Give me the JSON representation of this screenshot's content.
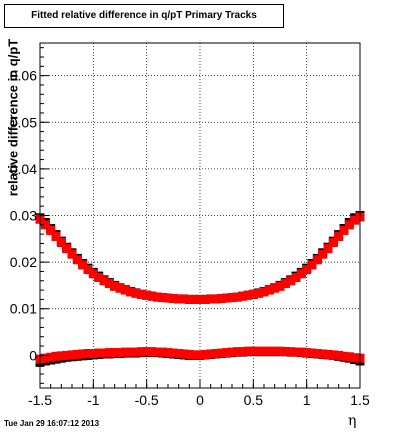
{
  "title": "Fitted relative difference in q/pT  Primary Tracks",
  "timestamp": "Tue Jan 29 16:07:12 2013",
  "colors": {
    "series_red": "#ff0000",
    "series_black": "#000000",
    "grid": "#000000",
    "frame": "#000000"
  },
  "chart_data": {
    "type": "scatter",
    "title": "Fitted relative difference in q/pT  Primary Tracks",
    "xlabel": "η",
    "ylabel": "relative difference in q/pT",
    "xlim": [
      -1.5,
      1.5
    ],
    "ylim": [
      -0.007,
      0.067
    ],
    "grid": true,
    "legend": "none",
    "x_ticks": [
      "-1.5",
      "-1",
      "-0.5",
      "0",
      "0.5",
      "1",
      "1.5"
    ],
    "y_ticks": [
      "0",
      "0.01",
      "0.02",
      "0.03",
      "0.04",
      "0.05",
      "0.06"
    ],
    "series": [
      {
        "color": "black",
        "marker": "square",
        "x": [
          -1.5,
          -1.45,
          -1.4,
          -1.35,
          -1.3,
          -1.25,
          -1.2,
          -1.15,
          -1.1,
          -1.05,
          -1.0,
          -0.95,
          -0.9,
          -0.85,
          -0.8,
          -0.75,
          -0.7,
          -0.65,
          -0.6,
          -0.55,
          -0.5,
          -0.45,
          -0.4,
          -0.35,
          -0.3,
          -0.25,
          -0.2,
          -0.15,
          -0.1,
          -0.05,
          0.0,
          0.05,
          0.1,
          0.15,
          0.2,
          0.25,
          0.3,
          0.35,
          0.4,
          0.45,
          0.5,
          0.55,
          0.6,
          0.65,
          0.7,
          0.75,
          0.8,
          0.85,
          0.9,
          0.95,
          1.0,
          1.05,
          1.1,
          1.15,
          1.2,
          1.25,
          1.3,
          1.35,
          1.4,
          1.45,
          1.5
        ],
        "y_upper": [
          0.0295,
          0.0285,
          0.0272,
          0.0259,
          0.0245,
          0.0232,
          0.022,
          0.0208,
          0.0197,
          0.0187,
          0.0178,
          0.017,
          0.0162,
          0.0156,
          0.015,
          0.0145,
          0.0141,
          0.0137,
          0.0134,
          0.0131,
          0.0129,
          0.0127,
          0.0125,
          0.0124,
          0.0123,
          0.0122,
          0.0121,
          0.0121,
          0.012,
          0.012,
          0.012,
          0.012,
          0.0121,
          0.0121,
          0.0122,
          0.0123,
          0.0124,
          0.0125,
          0.0127,
          0.0129,
          0.0131,
          0.0134,
          0.0137,
          0.0141,
          0.0145,
          0.015,
          0.0156,
          0.0162,
          0.017,
          0.0178,
          0.0187,
          0.0197,
          0.0208,
          0.022,
          0.0232,
          0.0245,
          0.0259,
          0.0272,
          0.0285,
          0.0295,
          0.03
        ],
        "y_lower": [
          -0.0015,
          -0.0012,
          -0.001,
          -0.0008,
          -0.0006,
          -0.0004,
          -0.0003,
          -0.0002,
          -0.0001,
          0.0,
          0.0001,
          0.0002,
          0.0003,
          0.0003,
          0.0004,
          0.0004,
          0.0005,
          0.0005,
          0.0005,
          0.0006,
          0.0006,
          0.0006,
          0.0006,
          0.0005,
          0.0004,
          0.0003,
          0.0002,
          0.0001,
          0.0,
          0.0,
          0.0,
          0.0001,
          0.0002,
          0.0003,
          0.0004,
          0.0005,
          0.0006,
          0.0007,
          0.0007,
          0.0008,
          0.0008,
          0.0008,
          0.0008,
          0.0008,
          0.0008,
          0.0008,
          0.0008,
          0.0007,
          0.0007,
          0.0006,
          0.0005,
          0.0004,
          0.0003,
          0.0002,
          0.0001,
          0.0,
          -0.0002,
          -0.0004,
          -0.0006,
          -0.0009,
          -0.0012
        ]
      },
      {
        "color": "red",
        "marker": "square",
        "x": [
          -1.5,
          -1.45,
          -1.4,
          -1.35,
          -1.3,
          -1.25,
          -1.2,
          -1.15,
          -1.1,
          -1.05,
          -1.0,
          -0.95,
          -0.9,
          -0.85,
          -0.8,
          -0.75,
          -0.7,
          -0.65,
          -0.6,
          -0.55,
          -0.5,
          -0.45,
          -0.4,
          -0.35,
          -0.3,
          -0.25,
          -0.2,
          -0.15,
          -0.1,
          -0.05,
          0.0,
          0.05,
          0.1,
          0.15,
          0.2,
          0.25,
          0.3,
          0.35,
          0.4,
          0.45,
          0.5,
          0.55,
          0.6,
          0.65,
          0.7,
          0.75,
          0.8,
          0.85,
          0.9,
          0.95,
          1.0,
          1.05,
          1.1,
          1.15,
          1.2,
          1.25,
          1.3,
          1.35,
          1.4,
          1.45,
          1.5
        ],
        "y_upper": [
          0.0292,
          0.028,
          0.0268,
          0.0255,
          0.0242,
          0.0229,
          0.0217,
          0.0205,
          0.0194,
          0.0184,
          0.0175,
          0.0167,
          0.016,
          0.0154,
          0.0148,
          0.0144,
          0.014,
          0.0136,
          0.0133,
          0.0131,
          0.0129,
          0.0127,
          0.0125,
          0.0124,
          0.0123,
          0.0122,
          0.0121,
          0.0121,
          0.012,
          0.012,
          0.012,
          0.012,
          0.0121,
          0.0121,
          0.0122,
          0.0123,
          0.0124,
          0.0125,
          0.0127,
          0.0129,
          0.0131,
          0.0133,
          0.0136,
          0.014,
          0.0144,
          0.0148,
          0.0154,
          0.016,
          0.0167,
          0.0175,
          0.0184,
          0.0194,
          0.0205,
          0.0217,
          0.0229,
          0.0242,
          0.0255,
          0.0268,
          0.028,
          0.029,
          0.0297
        ],
        "y_lower": [
          -0.0008,
          -0.0006,
          -0.0004,
          -0.0002,
          -0.0001,
          0.0,
          0.0001,
          0.0002,
          0.0003,
          0.0004,
          0.0004,
          0.0005,
          0.0005,
          0.0006,
          0.0006,
          0.0006,
          0.0007,
          0.0007,
          0.0007,
          0.0008,
          0.0008,
          0.0008,
          0.0007,
          0.0007,
          0.0006,
          0.0005,
          0.0004,
          0.0003,
          0.0002,
          0.0001,
          0.0001,
          0.0002,
          0.0003,
          0.0004,
          0.0005,
          0.0006,
          0.0007,
          0.0008,
          0.0008,
          0.0009,
          0.0009,
          0.0009,
          0.0009,
          0.0009,
          0.0009,
          0.0009,
          0.0008,
          0.0008,
          0.0007,
          0.0007,
          0.0006,
          0.0005,
          0.0004,
          0.0003,
          0.0002,
          0.0001,
          0.0,
          -0.0002,
          -0.0003,
          -0.0005,
          -0.0006
        ]
      }
    ]
  }
}
